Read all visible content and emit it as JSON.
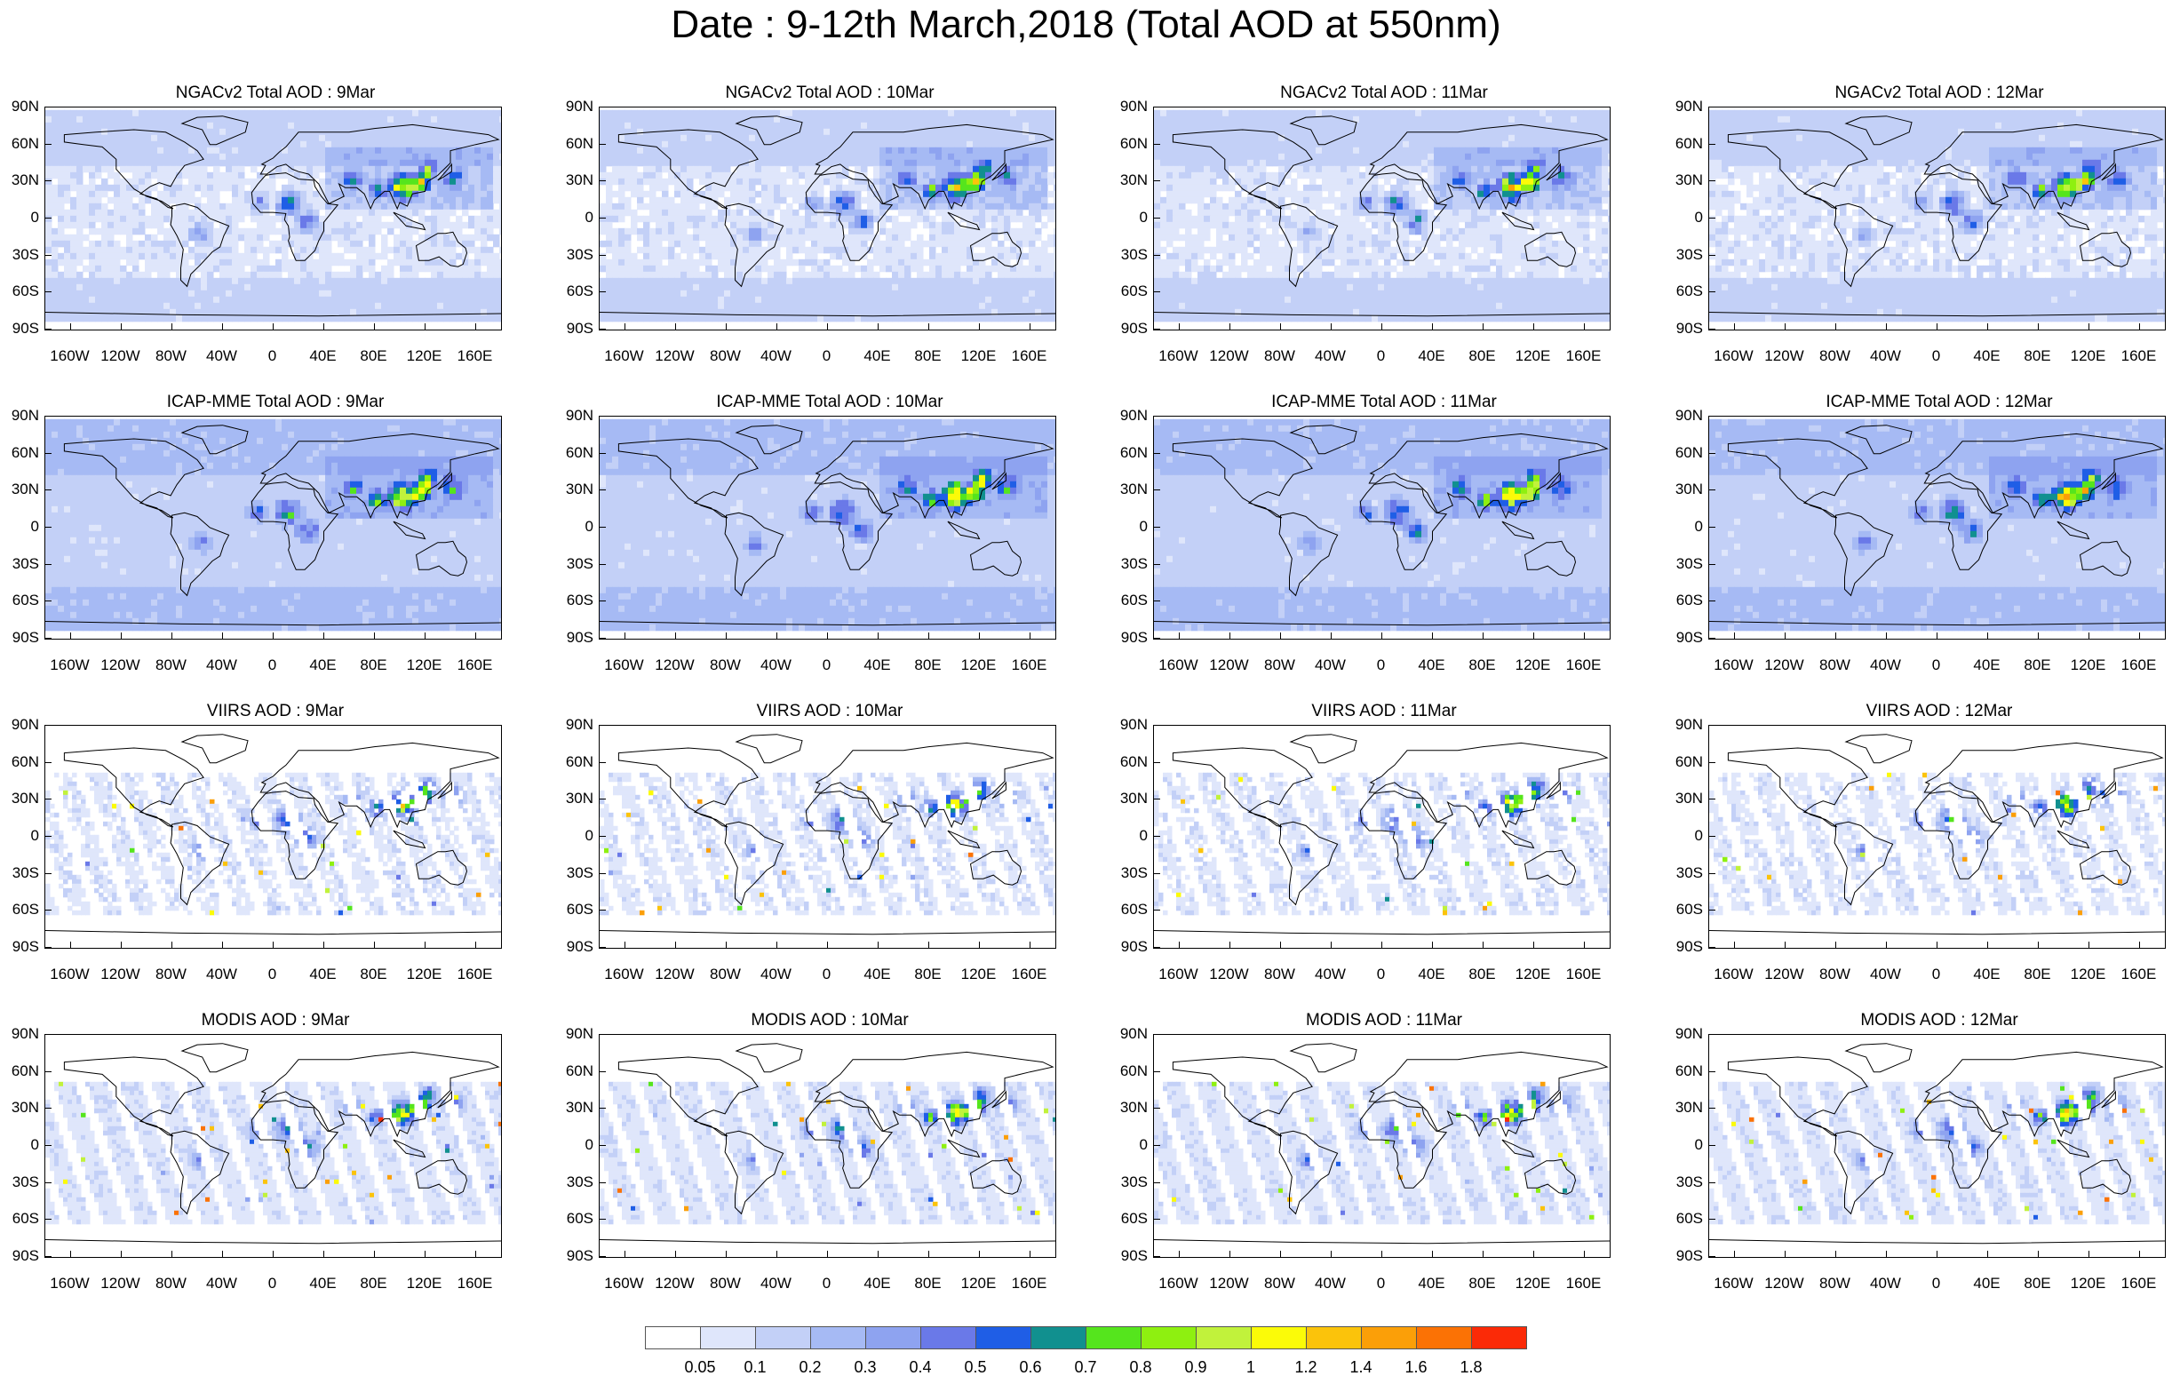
{
  "title": "Date : 9-12th March,2018 (Total AOD at 550nm)",
  "panels": [
    {
      "title": "NGACv2 Total AOD : 9Mar",
      "kind": "model",
      "seed": 11
    },
    {
      "title": "NGACv2 Total AOD : 10Mar",
      "kind": "model",
      "seed": 12
    },
    {
      "title": "NGACv2 Total AOD : 11Mar",
      "kind": "model",
      "seed": 13
    },
    {
      "title": "NGACv2 Total AOD : 12Mar",
      "kind": "model",
      "seed": 14
    },
    {
      "title": "ICAP-MME Total AOD : 9Mar",
      "kind": "ensemble",
      "seed": 21
    },
    {
      "title": "ICAP-MME Total AOD : 10Mar",
      "kind": "ensemble",
      "seed": 22
    },
    {
      "title": "ICAP-MME Total AOD : 11Mar",
      "kind": "ensemble",
      "seed": 23
    },
    {
      "title": "ICAP-MME Total AOD : 12Mar",
      "kind": "ensemble",
      "seed": 24
    },
    {
      "title": "VIIRS AOD : 9Mar",
      "kind": "satellite",
      "seed": 31
    },
    {
      "title": "VIIRS AOD : 10Mar",
      "kind": "satellite",
      "seed": 32
    },
    {
      "title": "VIIRS AOD : 11Mar",
      "kind": "satellite",
      "seed": 33
    },
    {
      "title": "VIIRS AOD : 12Mar",
      "kind": "satellite",
      "seed": 34
    },
    {
      "title": "MODIS AOD : 9Mar",
      "kind": "satellite2",
      "seed": 41
    },
    {
      "title": "MODIS AOD : 10Mar",
      "kind": "satellite2",
      "seed": 42
    },
    {
      "title": "MODIS AOD : 11Mar",
      "kind": "satellite2",
      "seed": 43
    },
    {
      "title": "MODIS AOD : 12Mar",
      "kind": "satellite2",
      "seed": 44
    }
  ],
  "lat_labels": [
    "90N",
    "60N",
    "30N",
    "0",
    "30S",
    "60S",
    "90S"
  ],
  "lon_labels": [
    "160W",
    "120W",
    "80W",
    "40W",
    "0",
    "40E",
    "80E",
    "120E",
    "160E"
  ],
  "colorbar": {
    "labels": [
      "0.05",
      "0.1",
      "0.2",
      "0.3",
      "0.4",
      "0.5",
      "0.6",
      "0.7",
      "0.8",
      "0.9",
      "1",
      "1.2",
      "1.4",
      "1.6",
      "1.8"
    ],
    "colors": [
      "#ffffff",
      "#dfe6fb",
      "#c3d0f7",
      "#a6baf4",
      "#8ea3f0",
      "#6a79e8",
      "#1f5ee6",
      "#11908f",
      "#55e51d",
      "#8ef010",
      "#c1f23b",
      "#fbfb08",
      "#fbc30b",
      "#fb9f08",
      "#fb7205",
      "#fb2a07"
    ]
  }
}
